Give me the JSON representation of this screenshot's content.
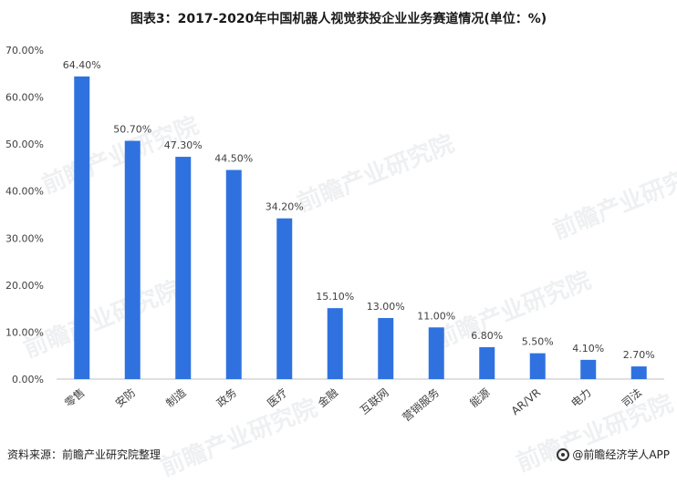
{
  "watermark_text": "前瞻产业研究院",
  "footer": {
    "source": "资料来源：前瞻产业研究院整理",
    "brand": "@前瞻经济学人APP"
  },
  "colors": {
    "bar": "#2f72df",
    "axis": "#bfbfbf",
    "label": "#404040"
  },
  "chart_data": {
    "type": "bar",
    "title": "图表3：2017-2020年中国机器人视觉获投企业业务赛道情况(单位：%)",
    "xlabel": "",
    "ylabel": "",
    "ylim": [
      0,
      70
    ],
    "grid": false,
    "categories": [
      "零售",
      "安防",
      "制造",
      "政务",
      "医疗",
      "金融",
      "互联网",
      "营销服务",
      "能源",
      "AR/VR",
      "电力",
      "司法"
    ],
    "values": [
      64.4,
      50.7,
      47.3,
      44.5,
      34.2,
      15.1,
      13.0,
      11.0,
      6.8,
      5.5,
      4.1,
      2.7
    ],
    "value_labels": [
      "64.40%",
      "50.70%",
      "47.30%",
      "44.50%",
      "34.20%",
      "15.10%",
      "13.00%",
      "11.00%",
      "6.80%",
      "5.50%",
      "4.10%",
      "2.70%"
    ],
    "yticks": [
      0,
      10,
      20,
      30,
      40,
      50,
      60,
      70
    ],
    "ytick_labels": [
      "0.00%",
      "10.00%",
      "20.00%",
      "30.00%",
      "40.00%",
      "50.00%",
      "60.00%",
      "70.00%"
    ]
  }
}
